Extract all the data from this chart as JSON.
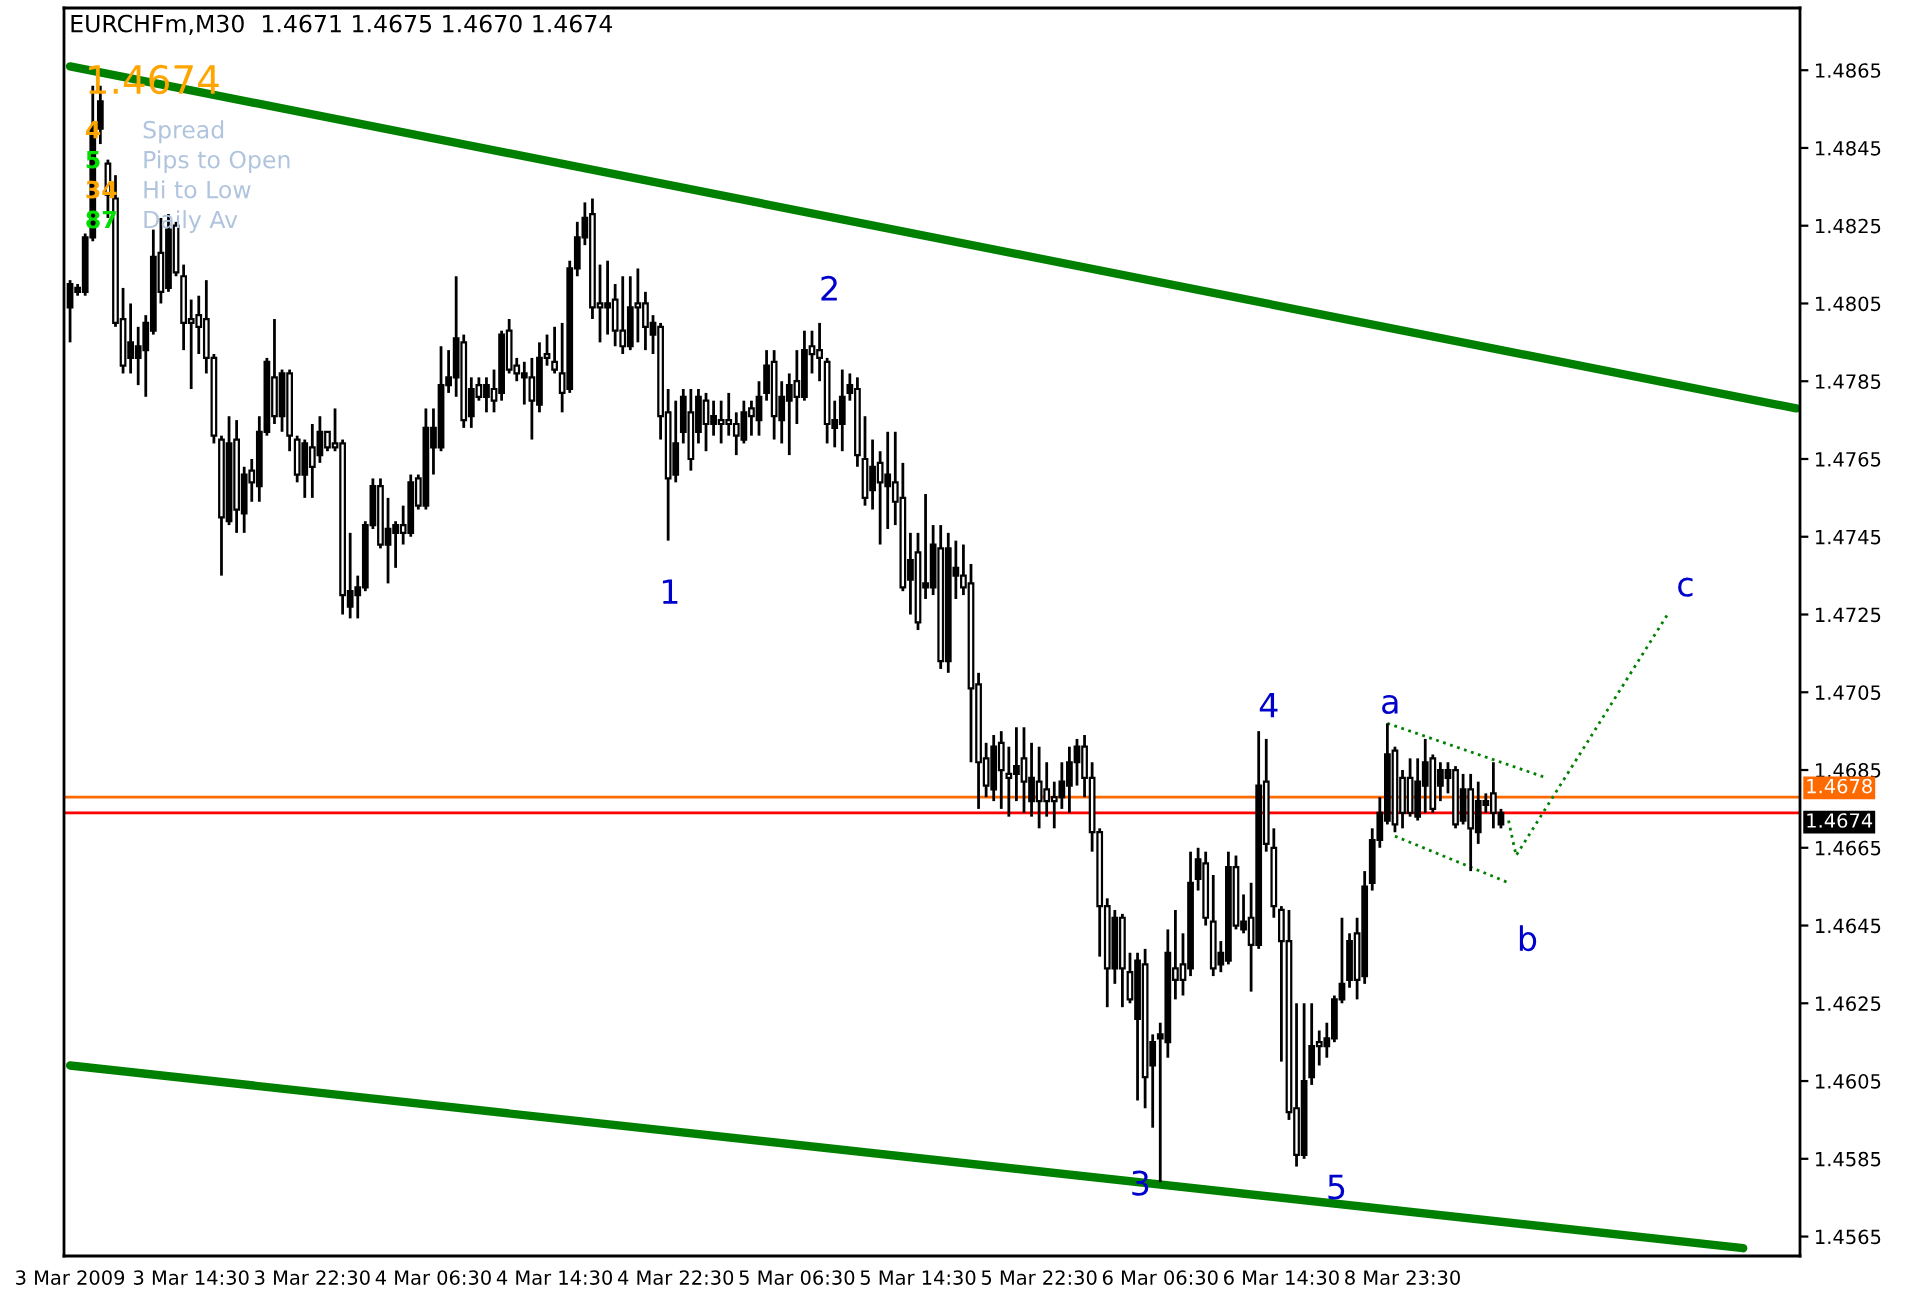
{
  "chart_data": {
    "type": "candlestick",
    "title": "EURCHFm,M30  1.4671 1.4675 1.4670 1.4674",
    "categories": [
      "3 Mar 2009",
      null,
      null,
      null,
      null,
      null,
      null,
      null,
      null,
      null,
      null,
      null,
      null,
      null,
      null,
      null,
      "3 Mar 14:30",
      null,
      null,
      null,
      null,
      null,
      null,
      null,
      null,
      null,
      null,
      null,
      null,
      null,
      null,
      null,
      "3 Mar 22:30",
      null,
      null,
      null,
      null,
      null,
      null,
      null,
      null,
      null,
      null,
      null,
      null,
      null,
      null,
      null,
      "4 Mar 06:30",
      null,
      null,
      null,
      null,
      null,
      null,
      null,
      null,
      null,
      null,
      null,
      null,
      null,
      null,
      null,
      "4 Mar 14:30",
      null,
      null,
      null,
      null,
      null,
      null,
      null,
      null,
      null,
      null,
      null,
      null,
      null,
      null,
      null,
      "4 Mar 22:30",
      null,
      null,
      null,
      null,
      null,
      null,
      null,
      null,
      null,
      null,
      null,
      null,
      null,
      null,
      null,
      "5 Mar 06:30",
      null,
      null,
      null,
      null,
      null,
      null,
      null,
      null,
      null,
      null,
      null,
      null,
      null,
      null,
      null,
      "5 Mar 14:30",
      null,
      null,
      null,
      null,
      null,
      null,
      null,
      null,
      null,
      null,
      null,
      null,
      null,
      null,
      null,
      "5 Mar 22:30",
      null,
      null,
      null,
      null,
      null,
      null,
      null,
      null,
      null,
      null,
      null,
      null,
      null,
      null,
      null,
      "6 Mar 06:30",
      null,
      null,
      null,
      null,
      null,
      null,
      null,
      null,
      null,
      null,
      null,
      null,
      null,
      null,
      null,
      "6 Mar 14:30",
      null,
      null,
      null,
      null,
      null,
      null,
      null,
      null,
      null,
      null,
      null,
      null,
      null,
      null,
      null,
      "8 Mar 23:30",
      null,
      null,
      null,
      null,
      null,
      null,
      null,
      null,
      null,
      null,
      null,
      null,
      null,
      null,
      null,
      null,
      null,
      null,
      null,
      null,
      null,
      null,
      null,
      null,
      null,
      null,
      null,
      null,
      null,
      null,
      null,
      null,
      null,
      null,
      null,
      null,
      null,
      null,
      null,
      null,
      null,
      null,
      null,
      null,
      null,
      null,
      null,
      null,
      null,
      null,
      null,
      null
    ],
    "ohlc": [
      [
        1.4804,
        1.4811,
        1.4795,
        1.481
      ],
      [
        1.4808,
        1.481,
        1.4807,
        1.4809
      ],
      [
        1.4808,
        1.4823,
        1.4807,
        1.4822
      ],
      [
        1.4822,
        1.4861,
        1.4821,
        1.485
      ],
      [
        1.485,
        1.4861,
        1.4846,
        1.4857
      ],
      [
        1.4841,
        1.4842,
        1.4827,
        1.4833
      ],
      [
        1.4832,
        1.4838,
        1.4799,
        1.48
      ],
      [
        1.4801,
        1.4809,
        1.4787,
        1.4789
      ],
      [
        1.4791,
        1.4805,
        1.4787,
        1.4795
      ],
      [
        1.4791,
        1.4799,
        1.4784,
        1.4794
      ],
      [
        1.4793,
        1.4802,
        1.4781,
        1.48
      ],
      [
        1.4798,
        1.4824,
        1.4797,
        1.4817
      ],
      [
        1.4818,
        1.4827,
        1.4805,
        1.4808
      ],
      [
        1.4809,
        1.4828,
        1.4808,
        1.4824
      ],
      [
        1.4825,
        1.4826,
        1.4812,
        1.4813
      ],
      [
        1.4812,
        1.4815,
        1.4793,
        1.48
      ],
      [
        1.4801,
        1.4806,
        1.4783,
        1.48
      ],
      [
        1.4802,
        1.4807,
        1.4792,
        1.4799
      ],
      [
        1.4801,
        1.4811,
        1.4787,
        1.4791
      ],
      [
        1.4791,
        1.4792,
        1.4769,
        1.4771
      ],
      [
        1.477,
        1.4771,
        1.4735,
        1.475
      ],
      [
        1.4749,
        1.4776,
        1.4748,
        1.4769
      ],
      [
        1.477,
        1.4775,
        1.4746,
        1.4752
      ],
      [
        1.4751,
        1.4763,
        1.4746,
        1.4761
      ],
      [
        1.4762,
        1.4765,
        1.4754,
        1.4759
      ],
      [
        1.4758,
        1.4776,
        1.4754,
        1.4772
      ],
      [
        1.4772,
        1.4791,
        1.4771,
        1.479
      ],
      [
        1.4786,
        1.4801,
        1.4774,
        1.4776
      ],
      [
        1.4776,
        1.4788,
        1.4772,
        1.4787
      ],
      [
        1.4787,
        1.4788,
        1.4767,
        1.4771
      ],
      [
        1.477,
        1.4771,
        1.4759,
        1.4761
      ],
      [
        1.4761,
        1.477,
        1.4755,
        1.4769
      ],
      [
        1.4768,
        1.4774,
        1.4755,
        1.4763
      ],
      [
        1.4766,
        1.4776,
        1.4764,
        1.4772
      ],
      [
        1.4772,
        1.4772,
        1.4767,
        1.4768
      ],
      [
        1.4769,
        1.4778,
        1.4767,
        1.4768
      ],
      [
        1.4769,
        1.477,
        1.4725,
        1.473
      ],
      [
        1.4727,
        1.4746,
        1.4724,
        1.4731
      ],
      [
        1.473,
        1.4735,
        1.4724,
        1.4732
      ],
      [
        1.4732,
        1.4749,
        1.4731,
        1.4748
      ],
      [
        1.4748,
        1.476,
        1.4747,
        1.4758
      ],
      [
        1.4758,
        1.476,
        1.4742,
        1.4743
      ],
      [
        1.4743,
        1.4755,
        1.4733,
        1.4747
      ],
      [
        1.4746,
        1.4749,
        1.4737,
        1.4748
      ],
      [
        1.4748,
        1.4753,
        1.4743,
        1.4746
      ],
      [
        1.4746,
        1.4761,
        1.4745,
        1.4759
      ],
      [
        1.476,
        1.4761,
        1.4752,
        1.4753
      ],
      [
        1.4753,
        1.4778,
        1.4752,
        1.4773
      ],
      [
        1.4768,
        1.4778,
        1.4761,
        1.4773
      ],
      [
        1.4768,
        1.4794,
        1.4767,
        1.4784
      ],
      [
        1.4784,
        1.4793,
        1.4782,
        1.4786
      ],
      [
        1.4786,
        1.4812,
        1.4781,
        1.4796
      ],
      [
        1.4795,
        1.4797,
        1.4773,
        1.4775
      ],
      [
        1.4776,
        1.4786,
        1.4773,
        1.4783
      ],
      [
        1.4784,
        1.4786,
        1.478,
        1.4781
      ],
      [
        1.4781,
        1.4786,
        1.4777,
        1.4784
      ],
      [
        1.4783,
        1.4788,
        1.4777,
        1.478
      ],
      [
        1.4782,
        1.4798,
        1.478,
        1.4797
      ],
      [
        1.4798,
        1.4801,
        1.4787,
        1.4788
      ],
      [
        1.4789,
        1.4791,
        1.4785,
        1.4787
      ],
      [
        1.4786,
        1.479,
        1.4779,
        1.4787
      ],
      [
        1.4786,
        1.4791,
        1.477,
        1.478
      ],
      [
        1.4779,
        1.4795,
        1.4777,
        1.4791
      ],
      [
        1.4792,
        1.4797,
        1.4789,
        1.4791
      ],
      [
        1.479,
        1.4799,
        1.4787,
        1.4788
      ],
      [
        1.4787,
        1.48,
        1.4777,
        1.4782
      ],
      [
        1.4783,
        1.4816,
        1.4782,
        1.4814
      ],
      [
        1.4814,
        1.4826,
        1.4812,
        1.4822
      ],
      [
        1.4822,
        1.4831,
        1.482,
        1.4827
      ],
      [
        1.4828,
        1.4832,
        1.4801,
        1.4804
      ],
      [
        1.4805,
        1.4815,
        1.4795,
        1.4804
      ],
      [
        1.4804,
        1.4816,
        1.4797,
        1.4805
      ],
      [
        1.4806,
        1.481,
        1.4794,
        1.4798
      ],
      [
        1.4798,
        1.4812,
        1.4792,
        1.4794
      ],
      [
        1.4794,
        1.4812,
        1.4793,
        1.4804
      ],
      [
        1.4805,
        1.4814,
        1.4795,
        1.4804
      ],
      [
        1.4805,
        1.4808,
        1.4793,
        1.4799
      ],
      [
        1.4797,
        1.4802,
        1.4792,
        1.48
      ],
      [
        1.4799,
        1.48,
        1.477,
        1.4776
      ],
      [
        1.4777,
        1.4783,
        1.4744,
        1.476
      ],
      [
        1.4761,
        1.478,
        1.4759,
        1.4769
      ],
      [
        1.4772,
        1.4783,
        1.4769,
        1.4781
      ],
      [
        1.4777,
        1.4783,
        1.4762,
        1.4765
      ],
      [
        1.4772,
        1.4783,
        1.4769,
        1.4781
      ],
      [
        1.478,
        1.4782,
        1.4767,
        1.4774
      ],
      [
        1.4774,
        1.478,
        1.4771,
        1.4776
      ],
      [
        1.4775,
        1.478,
        1.4769,
        1.4774
      ],
      [
        1.4775,
        1.4782,
        1.4771,
        1.4774
      ],
      [
        1.4774,
        1.4777,
        1.4766,
        1.4771
      ],
      [
        1.477,
        1.478,
        1.4769,
        1.4777
      ],
      [
        1.4778,
        1.478,
        1.4771,
        1.4776
      ],
      [
        1.4775,
        1.4785,
        1.4771,
        1.4781
      ],
      [
        1.4782,
        1.4793,
        1.478,
        1.4789
      ],
      [
        1.479,
        1.4793,
        1.477,
        1.4776
      ],
      [
        1.4775,
        1.4785,
        1.4769,
        1.4781
      ],
      [
        1.478,
        1.4787,
        1.4766,
        1.4784
      ],
      [
        1.4785,
        1.4793,
        1.4774,
        1.4781
      ],
      [
        1.4781,
        1.4798,
        1.478,
        1.4793
      ],
      [
        1.4794,
        1.4798,
        1.4787,
        1.4792
      ],
      [
        1.4793,
        1.48,
        1.4785,
        1.4791
      ],
      [
        1.479,
        1.4791,
        1.4769,
        1.4774
      ],
      [
        1.4773,
        1.478,
        1.4768,
        1.4775
      ],
      [
        1.4774,
        1.4788,
        1.4767,
        1.4781
      ],
      [
        1.4782,
        1.4787,
        1.478,
        1.4784
      ],
      [
        1.4783,
        1.4786,
        1.4763,
        1.4766
      ],
      [
        1.4765,
        1.4776,
        1.4753,
        1.4755
      ],
      [
        1.4757,
        1.477,
        1.4752,
        1.4763
      ],
      [
        1.4764,
        1.4767,
        1.4743,
        1.4759
      ],
      [
        1.4758,
        1.4772,
        1.4747,
        1.4761
      ],
      [
        1.4759,
        1.4772,
        1.4748,
        1.4754
      ],
      [
        1.4755,
        1.4764,
        1.4731,
        1.4732
      ],
      [
        1.4734,
        1.4746,
        1.4725,
        1.4739
      ],
      [
        1.4741,
        1.4746,
        1.4721,
        1.4723
      ],
      [
        1.4732,
        1.4756,
        1.4729,
        1.4733
      ],
      [
        1.4732,
        1.4748,
        1.473,
        1.4743
      ],
      [
        1.4742,
        1.4748,
        1.4711,
        1.4713
      ],
      [
        1.4713,
        1.4746,
        1.471,
        1.4742
      ],
      [
        1.4735,
        1.4744,
        1.4729,
        1.4737
      ],
      [
        1.4735,
        1.4743,
        1.473,
        1.4732
      ],
      [
        1.4733,
        1.4738,
        1.4687,
        1.4706
      ],
      [
        1.4707,
        1.471,
        1.4675,
        1.4687
      ],
      [
        1.4688,
        1.4692,
        1.4678,
        1.4681
      ],
      [
        1.468,
        1.4694,
        1.4677,
        1.4691
      ],
      [
        1.4692,
        1.4695,
        1.4675,
        1.4685
      ],
      [
        1.4684,
        1.4691,
        1.4673,
        1.4683
      ],
      [
        1.4684,
        1.4696,
        1.4677,
        1.4686
      ],
      [
        1.4688,
        1.4696,
        1.4674,
        1.4682
      ],
      [
        1.4677,
        1.4692,
        1.4673,
        1.4683
      ],
      [
        1.4682,
        1.4691,
        1.467,
        1.4677
      ],
      [
        1.468,
        1.4687,
        1.4673,
        1.4677
      ],
      [
        1.4678,
        1.4682,
        1.467,
        1.4677
      ],
      [
        1.4678,
        1.4687,
        1.4675,
        1.4682
      ],
      [
        1.4681,
        1.4691,
        1.4674,
        1.4687
      ],
      [
        1.4687,
        1.4693,
        1.4681,
        1.4691
      ],
      [
        1.4691,
        1.4694,
        1.4678,
        1.4683
      ],
      [
        1.4683,
        1.4687,
        1.4664,
        1.4669
      ],
      [
        1.4669,
        1.467,
        1.4637,
        1.465
      ],
      [
        1.465,
        1.4652,
        1.4624,
        1.4634
      ],
      [
        1.4634,
        1.4649,
        1.463,
        1.4647
      ],
      [
        1.4647,
        1.4648,
        1.4624,
        1.4634
      ],
      [
        1.4633,
        1.4638,
        1.4625,
        1.4626
      ],
      [
        1.4621,
        1.4638,
        1.46,
        1.4636
      ],
      [
        1.4635,
        1.4639,
        1.4598,
        1.4606
      ],
      [
        1.4609,
        1.4617,
        1.4593,
        1.4615
      ],
      [
        1.4616,
        1.462,
        1.4579,
        1.4617
      ],
      [
        1.4615,
        1.4644,
        1.4611,
        1.4638
      ],
      [
        1.4634,
        1.4649,
        1.4626,
        1.4631
      ],
      [
        1.4635,
        1.4643,
        1.4627,
        1.4631
      ],
      [
        1.4634,
        1.4664,
        1.4632,
        1.4656
      ],
      [
        1.4657,
        1.4665,
        1.4654,
        1.4662
      ],
      [
        1.4661,
        1.4664,
        1.4645,
        1.4647
      ],
      [
        1.4646,
        1.4658,
        1.4632,
        1.4634
      ],
      [
        1.4635,
        1.4641,
        1.4633,
        1.4638
      ],
      [
        1.4636,
        1.4664,
        1.4635,
        1.466
      ],
      [
        1.466,
        1.4663,
        1.4644,
        1.4645
      ],
      [
        1.4644,
        1.4653,
        1.4643,
        1.4646
      ],
      [
        1.4647,
        1.4656,
        1.4628,
        1.464
      ],
      [
        1.464,
        1.4695,
        1.4639,
        1.4681
      ],
      [
        1.4682,
        1.4693,
        1.4664,
        1.4666
      ],
      [
        1.4665,
        1.467,
        1.4647,
        1.465
      ],
      [
        1.4649,
        1.465,
        1.461,
        1.4641
      ],
      [
        1.4641,
        1.4649,
        1.4595,
        1.4597
      ],
      [
        1.4598,
        1.4625,
        1.4583,
        1.4586
      ],
      [
        1.4586,
        1.4625,
        1.4585,
        1.4605
      ],
      [
        1.4606,
        1.4625,
        1.4604,
        1.4614
      ],
      [
        1.4615,
        1.4618,
        1.4609,
        1.4614
      ],
      [
        1.4614,
        1.462,
        1.4611,
        1.4616
      ],
      [
        1.4616,
        1.4627,
        1.4615,
        1.4626
      ],
      [
        1.4626,
        1.4647,
        1.4625,
        1.463
      ],
      [
        1.4631,
        1.4643,
        1.4629,
        1.4641
      ],
      [
        1.4643,
        1.4647,
        1.4626,
        1.4631
      ],
      [
        1.4632,
        1.4659,
        1.463,
        1.4655
      ],
      [
        1.4656,
        1.467,
        1.4654,
        1.4667
      ],
      [
        1.4667,
        1.4678,
        1.4665,
        1.4674
      ],
      [
        1.4672,
        1.4697,
        1.4671,
        1.4689
      ],
      [
        1.469,
        1.4691,
        1.4669,
        1.4671
      ],
      [
        1.4683,
        1.4685,
        1.467,
        1.4674
      ],
      [
        1.4683,
        1.4688,
        1.4673,
        1.4674
      ],
      [
        1.4673,
        1.4688,
        1.4672,
        1.4682
      ],
      [
        1.4681,
        1.4693,
        1.4674,
        1.4687
      ],
      [
        1.4688,
        1.4689,
        1.4674,
        1.4675
      ],
      [
        1.4681,
        1.4687,
        1.4677,
        1.4685
      ],
      [
        1.4683,
        1.4687,
        1.4679,
        1.4685
      ],
      [
        1.4685,
        1.4686,
        1.467,
        1.4671
      ],
      [
        1.4672,
        1.4684,
        1.4671,
        1.468
      ],
      [
        1.468,
        1.4684,
        1.4659,
        1.467
      ],
      [
        1.4669,
        1.4682,
        1.4666,
        1.4677
      ],
      [
        1.4676,
        1.4679,
        1.4674,
        1.4677
      ],
      [
        1.4679,
        1.4687,
        1.467,
        1.4674
      ],
      [
        1.4671,
        1.4675,
        1.467,
        1.4674
      ],
      null,
      null,
      null,
      null,
      null,
      null,
      null,
      null,
      null,
      null,
      null,
      null,
      null,
      null,
      null,
      null,
      null,
      null,
      null,
      null,
      null,
      null,
      null,
      null,
      null,
      null,
      null,
      null,
      null,
      null,
      null,
      null,
      null,
      null,
      null,
      null,
      null,
      null,
      null
    ],
    "series": [
      {
        "type": "line",
        "color": "#008000",
        "line_style": "solid",
        "values": [
          1.4866,
          null,
          null,
          null,
          null,
          null,
          null,
          null,
          null,
          null,
          null,
          null,
          null,
          null,
          null,
          null,
          null,
          null,
          null,
          null,
          null,
          null,
          null,
          null,
          null,
          null,
          null,
          null,
          null,
          null,
          null,
          null,
          null,
          null,
          null,
          null,
          null,
          null,
          null,
          null,
          null,
          null,
          null,
          null,
          null,
          null,
          null,
          null,
          null,
          null,
          null,
          null,
          null,
          null,
          null,
          null,
          null,
          null,
          null,
          null,
          null,
          null,
          null,
          null,
          null,
          null,
          null,
          null,
          null,
          null,
          null,
          null,
          null,
          null,
          null,
          null,
          null,
          null,
          null,
          null,
          null,
          null,
          null,
          null,
          null,
          null,
          null,
          null,
          null,
          null,
          null,
          null,
          null,
          null,
          null,
          null,
          null,
          null,
          null,
          null,
          null,
          null,
          null,
          null,
          null,
          null,
          null,
          null,
          null,
          null,
          null,
          null,
          null,
          null,
          null,
          null,
          null,
          null,
          null,
          null,
          null,
          null,
          null,
          null,
          null,
          null,
          null,
          null,
          null,
          null,
          null,
          null,
          null,
          null,
          null,
          null,
          null,
          null,
          null,
          null,
          null,
          null,
          null,
          null,
          null,
          null,
          null,
          null,
          null,
          null,
          null,
          null,
          null,
          null,
          null,
          null,
          null,
          null,
          null,
          null,
          null,
          null,
          null,
          null,
          null,
          null,
          null,
          null,
          null,
          null,
          null,
          null,
          null,
          null,
          null,
          null,
          null,
          null,
          null,
          null,
          null,
          null,
          null,
          null,
          null,
          null,
          null,
          null,
          null,
          null,
          null,
          null,
          null,
          null,
          null,
          null,
          null,
          null,
          null,
          null,
          null,
          null,
          null,
          null,
          null,
          null,
          null,
          null,
          null,
          null,
          null,
          null,
          null,
          null,
          null,
          null,
          null,
          null,
          null,
          null,
          null,
          null,
          null,
          null,
          null,
          null,
          null,
          null,
          1.4778
        ]
      },
      {
        "type": "line",
        "color": "#008000",
        "line_style": "solid",
        "values": [
          1.4609,
          null,
          null,
          null,
          null,
          null,
          null,
          null,
          null,
          null,
          null,
          null,
          null,
          null,
          null,
          null,
          null,
          null,
          null,
          null,
          null,
          null,
          null,
          null,
          null,
          null,
          null,
          null,
          null,
          null,
          null,
          null,
          null,
          null,
          null,
          null,
          null,
          null,
          null,
          null,
          null,
          null,
          null,
          null,
          null,
          null,
          null,
          null,
          null,
          null,
          null,
          null,
          null,
          null,
          null,
          null,
          null,
          null,
          null,
          null,
          null,
          null,
          null,
          null,
          null,
          null,
          null,
          null,
          null,
          null,
          null,
          null,
          null,
          null,
          null,
          null,
          null,
          null,
          null,
          null,
          null,
          null,
          null,
          null,
          null,
          null,
          null,
          null,
          null,
          null,
          null,
          null,
          null,
          null,
          null,
          null,
          null,
          null,
          null,
          null,
          null,
          null,
          null,
          null,
          null,
          null,
          null,
          null,
          null,
          null,
          null,
          null,
          null,
          null,
          null,
          null,
          null,
          null,
          null,
          null,
          null,
          null,
          null,
          null,
          null,
          null,
          null,
          null,
          null,
          null,
          null,
          null,
          null,
          null,
          null,
          null,
          null,
          null,
          null,
          null,
          null,
          null,
          null,
          null,
          null,
          null,
          null,
          null,
          null,
          null,
          null,
          null,
          null,
          null,
          null,
          null,
          null,
          null,
          null,
          null,
          null,
          null,
          null,
          null,
          null,
          null,
          null,
          null,
          null,
          null,
          null,
          null,
          null,
          null,
          null,
          null,
          null,
          null,
          null,
          null,
          null,
          null,
          null,
          null,
          null,
          null,
          null,
          null,
          null,
          null,
          null,
          null,
          null,
          null,
          null,
          null,
          null,
          null,
          null,
          null,
          null,
          null,
          null,
          null,
          null,
          null,
          null,
          null,
          null,
          null,
          null,
          null,
          null,
          null,
          null,
          null,
          null,
          null,
          null,
          null,
          null,
          1.4562,
          null,
          null,
          null,
          null,
          null,
          null,
          null
        ]
      },
      {
        "type": "line",
        "color": "#008000",
        "line_style": "dotted",
        "values": [
          null,
          null,
          null,
          null,
          null,
          null,
          null,
          null,
          null,
          null,
          null,
          null,
          null,
          null,
          null,
          null,
          null,
          null,
          null,
          null,
          null,
          null,
          null,
          null,
          null,
          null,
          null,
          null,
          null,
          null,
          null,
          null,
          null,
          null,
          null,
          null,
          null,
          null,
          null,
          null,
          null,
          null,
          null,
          null,
          null,
          null,
          null,
          null,
          null,
          null,
          null,
          null,
          null,
          null,
          null,
          null,
          null,
          null,
          null,
          null,
          null,
          null,
          null,
          null,
          null,
          null,
          null,
          null,
          null,
          null,
          null,
          null,
          null,
          null,
          null,
          null,
          null,
          null,
          null,
          null,
          null,
          null,
          null,
          null,
          null,
          null,
          null,
          null,
          null,
          null,
          null,
          null,
          null,
          null,
          null,
          null,
          null,
          null,
          null,
          null,
          null,
          null,
          null,
          null,
          null,
          null,
          null,
          null,
          null,
          null,
          null,
          null,
          null,
          null,
          null,
          null,
          null,
          null,
          null,
          null,
          null,
          null,
          null,
          null,
          null,
          null,
          null,
          null,
          null,
          null,
          null,
          null,
          null,
          null,
          null,
          null,
          null,
          null,
          null,
          null,
          null,
          null,
          null,
          null,
          null,
          null,
          null,
          null,
          null,
          null,
          null,
          null,
          null,
          null,
          null,
          null,
          null,
          null,
          null,
          null,
          null,
          null,
          null,
          null,
          null,
          null,
          null,
          null,
          null,
          null,
          null,
          null,
          null,
          null,
          1.4697,
          null,
          null,
          null,
          null,
          null,
          null,
          null,
          null,
          null,
          null,
          null,
          null,
          null,
          null,
          null,
          null,
          null,
          null,
          null,
          null,
          1.4683,
          null,
          null,
          null,
          null,
          null,
          null,
          null,
          null,
          null,
          null,
          null,
          null,
          null,
          null,
          null,
          null,
          null,
          null,
          null,
          null,
          null,
          null,
          null,
          null,
          null,
          null,
          null,
          null,
          null,
          null,
          null,
          null,
          null
        ]
      },
      {
        "type": "line",
        "color": "#008000",
        "line_style": "dotted",
        "values": [
          null,
          null,
          null,
          null,
          null,
          null,
          null,
          null,
          null,
          null,
          null,
          null,
          null,
          null,
          null,
          null,
          null,
          null,
          null,
          null,
          null,
          null,
          null,
          null,
          null,
          null,
          null,
          null,
          null,
          null,
          null,
          null,
          null,
          null,
          null,
          null,
          null,
          null,
          null,
          null,
          null,
          null,
          null,
          null,
          null,
          null,
          null,
          null,
          null,
          null,
          null,
          null,
          null,
          null,
          null,
          null,
          null,
          null,
          null,
          null,
          null,
          null,
          null,
          null,
          null,
          null,
          null,
          null,
          null,
          null,
          null,
          null,
          null,
          null,
          null,
          null,
          null,
          null,
          null,
          null,
          null,
          null,
          null,
          null,
          null,
          null,
          null,
          null,
          null,
          null,
          null,
          null,
          null,
          null,
          null,
          null,
          null,
          null,
          null,
          null,
          null,
          null,
          null,
          null,
          null,
          null,
          null,
          null,
          null,
          null,
          null,
          null,
          null,
          null,
          null,
          null,
          null,
          null,
          null,
          null,
          null,
          null,
          null,
          null,
          null,
          null,
          null,
          null,
          null,
          null,
          null,
          null,
          null,
          null,
          null,
          null,
          null,
          null,
          null,
          null,
          null,
          null,
          null,
          null,
          null,
          null,
          null,
          null,
          null,
          null,
          null,
          null,
          null,
          null,
          null,
          null,
          null,
          null,
          null,
          null,
          null,
          null,
          null,
          null,
          null,
          null,
          null,
          null,
          null,
          null,
          null,
          null,
          null,
          null,
          null,
          1.4668,
          null,
          null,
          null,
          null,
          null,
          null,
          null,
          null,
          null,
          null,
          null,
          null,
          null,
          null,
          1.4656,
          null,
          null,
          null,
          null,
          null,
          null,
          null,
          null,
          null,
          null,
          null,
          null,
          null,
          null,
          null,
          null,
          null,
          null,
          null,
          null,
          null,
          null,
          null,
          null,
          null,
          null,
          null,
          null,
          null,
          null,
          null,
          null,
          null,
          null,
          null,
          null,
          null,
          null
        ]
      },
      {
        "type": "line",
        "color": "#008000",
        "line_style": "dotted",
        "values": [
          null,
          null,
          null,
          null,
          null,
          null,
          null,
          null,
          null,
          null,
          null,
          null,
          null,
          null,
          null,
          null,
          null,
          null,
          null,
          null,
          null,
          null,
          null,
          null,
          null,
          null,
          null,
          null,
          null,
          null,
          null,
          null,
          null,
          null,
          null,
          null,
          null,
          null,
          null,
          null,
          null,
          null,
          null,
          null,
          null,
          null,
          null,
          null,
          null,
          null,
          null,
          null,
          null,
          null,
          null,
          null,
          null,
          null,
          null,
          null,
          null,
          null,
          null,
          null,
          null,
          null,
          null,
          null,
          null,
          null,
          null,
          null,
          null,
          null,
          null,
          null,
          null,
          null,
          null,
          null,
          null,
          null,
          null,
          null,
          null,
          null,
          null,
          null,
          null,
          null,
          null,
          null,
          null,
          null,
          null,
          null,
          null,
          null,
          null,
          null,
          null,
          null,
          null,
          null,
          null,
          null,
          null,
          null,
          null,
          null,
          null,
          null,
          null,
          null,
          null,
          null,
          null,
          null,
          null,
          null,
          null,
          null,
          null,
          null,
          null,
          null,
          null,
          null,
          null,
          null,
          null,
          null,
          null,
          null,
          null,
          null,
          null,
          null,
          null,
          null,
          null,
          null,
          null,
          null,
          null,
          null,
          null,
          null,
          null,
          null,
          null,
          null,
          null,
          null,
          null,
          null,
          null,
          null,
          null,
          null,
          null,
          null,
          null,
          null,
          null,
          null,
          null,
          null,
          null,
          null,
          null,
          null,
          null,
          null,
          null,
          null,
          null,
          null,
          null,
          null,
          null,
          null,
          null,
          null,
          null,
          null,
          null,
          null,
          null,
          null,
          1.4672,
          1.4663,
          null,
          null,
          null,
          null,
          null,
          null,
          null,
          null,
          null,
          null,
          null,
          null,
          null,
          null,
          null,
          null,
          null,
          null,
          null,
          1.4725,
          null,
          null,
          null,
          null,
          null,
          null,
          null,
          null,
          null,
          null,
          null,
          null,
          null,
          null,
          null,
          null,
          null
        ]
      }
    ],
    "ref_lines": [
      {
        "axis": "y",
        "value": 1.4678,
        "label": "1.4678",
        "color": "#ff6a00"
      },
      {
        "axis": "y",
        "value": 1.4674,
        "label": "1.4674",
        "color": "#ff0000"
      }
    ],
    "annotations": [
      "1.4674",
      "4",
      "Spread",
      "5",
      "Pips to Open",
      "34",
      "Hi to Low",
      "87",
      "Daily Av",
      "1",
      "2",
      "3",
      "4",
      "5",
      "a",
      "b",
      "c"
    ],
    "ylim": [
      1.456,
      1.4881
    ],
    "yticks": [
      1.4565,
      1.4585,
      1.4605,
      1.4625,
      1.4645,
      1.4665,
      1.4685,
      1.4705,
      1.4725,
      1.4745,
      1.4765,
      1.4785,
      1.4805,
      1.4825,
      1.4845,
      1.4865
    ]
  }
}
